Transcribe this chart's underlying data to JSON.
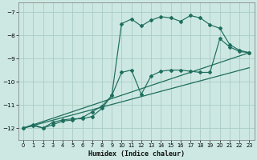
{
  "xlabel": "Humidex (Indice chaleur)",
  "background_color": "#cde8e2",
  "grid_color": "#aaccC4",
  "line_color": "#1e6e5e",
  "xlim": [
    -0.5,
    23.5
  ],
  "ylim": [
    -12.5,
    -6.6
  ],
  "yticks": [
    -12,
    -11,
    -10,
    -9,
    -8,
    -7
  ],
  "xticks": [
    0,
    1,
    2,
    3,
    4,
    5,
    6,
    7,
    8,
    9,
    10,
    11,
    12,
    13,
    14,
    15,
    16,
    17,
    18,
    19,
    20,
    21,
    22,
    23
  ],
  "line1_x": [
    0,
    1,
    2,
    3,
    4,
    5,
    6,
    7,
    8,
    9,
    10,
    11,
    12,
    13,
    14,
    15,
    16,
    17,
    18,
    19,
    20,
    21,
    22,
    23
  ],
  "line1_y": [
    -12.0,
    -11.85,
    -12.0,
    -11.75,
    -11.65,
    -11.6,
    -11.6,
    -11.5,
    -11.15,
    -10.6,
    -9.6,
    -9.5,
    -10.55,
    -9.75,
    -9.55,
    -9.5,
    -9.5,
    -9.55,
    -9.6,
    -9.6,
    -8.15,
    -8.5,
    -8.7,
    -8.75
  ],
  "line2_x": [
    0,
    1,
    2,
    3,
    4,
    5,
    6,
    7,
    8,
    9,
    10,
    11,
    12,
    13,
    14,
    15,
    16,
    17,
    18,
    19,
    20,
    21,
    22,
    23
  ],
  "line2_y": [
    -12.0,
    -11.9,
    -12.0,
    -11.85,
    -11.7,
    -11.65,
    -11.55,
    -11.3,
    -11.05,
    -10.6,
    -7.5,
    -7.3,
    -7.6,
    -7.35,
    -7.2,
    -7.25,
    -7.4,
    -7.15,
    -7.25,
    -7.55,
    -7.7,
    -8.4,
    -8.65,
    -8.75
  ],
  "line3_x": [
    0,
    23
  ],
  "line3_y": [
    -12.0,
    -8.75
  ],
  "line4_x": [
    0,
    23
  ],
  "line4_y": [
    -12.0,
    -9.4
  ]
}
